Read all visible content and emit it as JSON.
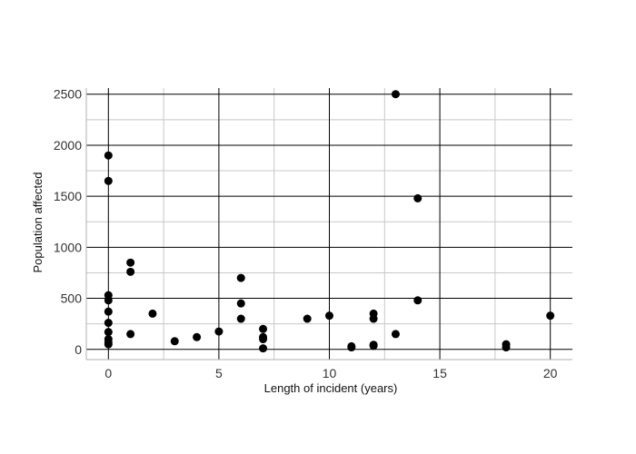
{
  "chart_data": {
    "type": "scatter",
    "title": "",
    "xlabel": "Length of incident (years)",
    "ylabel": "Population affected",
    "xlim": [
      -1,
      21
    ],
    "ylim": [
      -100,
      2560
    ],
    "x_ticks": [
      0,
      5,
      10,
      15,
      20
    ],
    "y_ticks": [
      0,
      500,
      1000,
      1500,
      2000,
      2500
    ],
    "grid": true,
    "marker_color": "#000000",
    "points": [
      {
        "x": 0,
        "y": 1900
      },
      {
        "x": 0,
        "y": 1650
      },
      {
        "x": 0,
        "y": 530
      },
      {
        "x": 0,
        "y": 480
      },
      {
        "x": 0,
        "y": 370
      },
      {
        "x": 0,
        "y": 260
      },
      {
        "x": 0,
        "y": 170
      },
      {
        "x": 0,
        "y": 100
      },
      {
        "x": 0,
        "y": 70
      },
      {
        "x": 0,
        "y": 50
      },
      {
        "x": 1,
        "y": 850
      },
      {
        "x": 1,
        "y": 760
      },
      {
        "x": 1,
        "y": 150
      },
      {
        "x": 2,
        "y": 350
      },
      {
        "x": 3,
        "y": 80
      },
      {
        "x": 4,
        "y": 120
      },
      {
        "x": 5,
        "y": 175
      },
      {
        "x": 6,
        "y": 700
      },
      {
        "x": 6,
        "y": 450
      },
      {
        "x": 6,
        "y": 300
      },
      {
        "x": 7,
        "y": 200
      },
      {
        "x": 7,
        "y": 120
      },
      {
        "x": 7,
        "y": 100
      },
      {
        "x": 7,
        "y": 10
      },
      {
        "x": 9,
        "y": 300
      },
      {
        "x": 10,
        "y": 330
      },
      {
        "x": 11,
        "y": 30
      },
      {
        "x": 11,
        "y": 20
      },
      {
        "x": 12,
        "y": 350
      },
      {
        "x": 12,
        "y": 300
      },
      {
        "x": 12,
        "y": 45
      },
      {
        "x": 12,
        "y": 35
      },
      {
        "x": 13,
        "y": 2500
      },
      {
        "x": 13,
        "y": 150
      },
      {
        "x": 14,
        "y": 1480
      },
      {
        "x": 14,
        "y": 480
      },
      {
        "x": 18,
        "y": 50
      },
      {
        "x": 18,
        "y": 20
      },
      {
        "x": 20,
        "y": 330
      }
    ]
  }
}
